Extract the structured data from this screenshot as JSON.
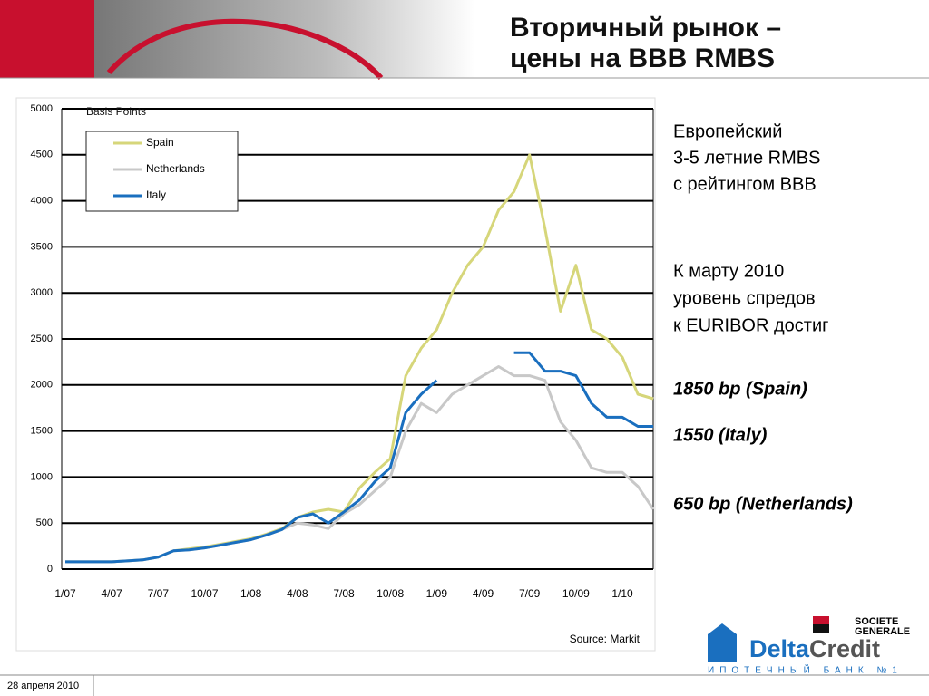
{
  "header": {
    "title": [
      "Вторичный рынок –",
      "цены на BBB RMBS"
    ]
  },
  "chart_data": {
    "type": "line",
    "ylabel": "Basis Points",
    "source": "Source: Markit",
    "categories": [
      "1/07",
      null,
      null,
      "4/07",
      null,
      null,
      "7/07",
      null,
      null,
      "10/07",
      null,
      null,
      "1/08",
      null,
      null,
      "4/08",
      null,
      null,
      "7/08",
      null,
      null,
      "10/08",
      null,
      null,
      "1/09",
      null,
      null,
      "4/09",
      null,
      null,
      "7/09",
      null,
      null,
      "10/09",
      null,
      null,
      "1/10",
      null,
      null
    ],
    "ylim": [
      0,
      5000
    ],
    "yticks": [
      0,
      500,
      1000,
      1500,
      2000,
      2500,
      3000,
      3500,
      4000,
      4500,
      5000
    ],
    "grid": true,
    "series": [
      {
        "name": "Spain",
        "color": "#d6d67a",
        "values": [
          80,
          80,
          80,
          80,
          90,
          100,
          130,
          200,
          220,
          240,
          270,
          300,
          330,
          380,
          440,
          560,
          620,
          650,
          620,
          880,
          1050,
          1200,
          2100,
          2400,
          2600,
          3000,
          3300,
          3500,
          3900,
          4100,
          4500,
          3700,
          2800,
          3300,
          2600,
          2500,
          2300,
          1900,
          1850
        ]
      },
      {
        "name": "Netherlands",
        "color": "#c8c8c8",
        "values": [
          80,
          80,
          80,
          80,
          90,
          100,
          130,
          200,
          210,
          230,
          260,
          290,
          320,
          370,
          430,
          500,
          480,
          440,
          600,
          700,
          850,
          1000,
          1500,
          1800,
          1700,
          1900,
          2000,
          2100,
          2200,
          2100,
          2100,
          2050,
          1600,
          1400,
          1100,
          1050,
          1050,
          900,
          650
        ]
      },
      {
        "name": "Italy",
        "color": "#1a6fbf",
        "values": [
          80,
          80,
          80,
          80,
          90,
          100,
          130,
          200,
          210,
          230,
          260,
          290,
          320,
          370,
          430,
          560,
          600,
          500,
          620,
          750,
          950,
          1100,
          1700,
          1900,
          2050,
          null,
          null,
          null,
          null,
          2350,
          2350,
          2150,
          2150,
          2100,
          1800,
          1650,
          1650,
          1550,
          1550
        ]
      }
    ]
  },
  "notes": {
    "intro": [
      "Европейский",
      "3-5 летние RMBS",
      "с рейтингом BBB"
    ],
    "text": [
      "К марту 2010",
      "уровень спредов",
      "к EURIBOR достиг"
    ],
    "levels": [
      "1850 bp (Spain)",
      "1550 (Italy)",
      "650 bp (Netherlands)"
    ]
  },
  "logos": {
    "bank": [
      "SOCIETE",
      "GENERALE"
    ],
    "brand": [
      "Delta",
      "Credit"
    ],
    "tagline": "ИПОТЕЧНЫЙ БАНК №1"
  },
  "footer": {
    "date": "28 апреля 2010"
  }
}
